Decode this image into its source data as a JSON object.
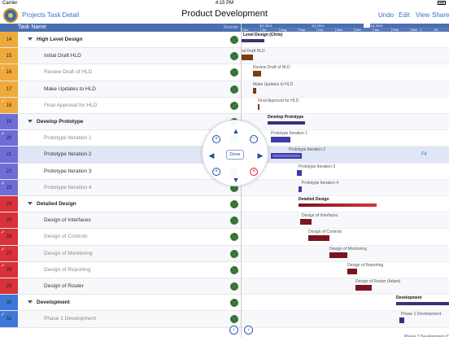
{
  "status": {
    "carrier": "Carrier",
    "time": "4:15 PM"
  },
  "nav": {
    "projects": "Projects",
    "task_detail": "Task Detail",
    "title": "Product Development",
    "undo": "Undo",
    "edit": "Edit",
    "view": "View",
    "share": "Share"
  },
  "table": {
    "header": "Task Name",
    "reorder": "Reorder"
  },
  "gantt": {
    "quarters": [
      "3Q 2014",
      "4Q 2014",
      "1Q 2015"
    ],
    "months": [
      "Jun",
      "Jul",
      "Aug",
      "Sep",
      "Oct",
      "Nov",
      "Dec",
      "Jan",
      "Feb",
      "Mar"
    ],
    "header_right": "Fit",
    "fit_label": "Fit"
  },
  "wheel": {
    "done": "Done"
  },
  "colors": {
    "orange": "#f0a93b",
    "purple": "#6f6ed8",
    "red": "#d9323a",
    "blue": "#3d78d8",
    "summary_dark": "#3c3078",
    "bar_brown": "#7a3e12",
    "bar_purple": "#3f3aa8",
    "bar_maroon": "#7a1422"
  },
  "tasks": [
    {
      "num": "14",
      "name": "High Level Design",
      "summary": true,
      "checked": false,
      "color": "orange",
      "level": 0
    },
    {
      "num": "15",
      "name": "Initial Draft HLD",
      "summary": false,
      "checked": false,
      "color": "orange",
      "level": 1
    },
    {
      "num": "16",
      "name": "Review Draft of HLD",
      "summary": false,
      "checked": true,
      "color": "orange",
      "level": 1
    },
    {
      "num": "17",
      "name": "Make Updates to HLD",
      "summary": false,
      "checked": false,
      "color": "orange",
      "level": 1
    },
    {
      "num": "18",
      "name": "Final Approval for HLD",
      "summary": false,
      "checked": true,
      "color": "orange",
      "level": 1
    },
    {
      "num": "19",
      "name": "Develop Prototype",
      "summary": true,
      "checked": false,
      "color": "purple",
      "level": 0
    },
    {
      "num": "20",
      "name": "Prototype Iteration 1",
      "summary": false,
      "checked": true,
      "color": "purple",
      "level": 1
    },
    {
      "num": "21",
      "name": "Prototype Iteration 2",
      "summary": false,
      "checked": false,
      "color": "purple",
      "level": 1
    },
    {
      "num": "22",
      "name": "Prototype Iteration 3",
      "summary": false,
      "checked": false,
      "color": "purple",
      "level": 1
    },
    {
      "num": "23",
      "name": "Prototype Iteration 4",
      "summary": false,
      "checked": true,
      "color": "purple",
      "level": 1
    },
    {
      "num": "24",
      "name": "Detailed Design",
      "summary": true,
      "checked": false,
      "color": "red",
      "level": 0
    },
    {
      "num": "25",
      "name": "Design of Interfaces",
      "summary": false,
      "checked": false,
      "color": "red",
      "level": 1
    },
    {
      "num": "26",
      "name": "Design of Controls",
      "summary": false,
      "checked": true,
      "color": "red",
      "level": 1
    },
    {
      "num": "27",
      "name": "Design of Monitoring",
      "summary": false,
      "checked": true,
      "color": "red",
      "level": 1
    },
    {
      "num": "28",
      "name": "Design of Reporting",
      "summary": false,
      "checked": true,
      "color": "red",
      "level": 1
    },
    {
      "num": "29",
      "name": "Design of Router",
      "summary": false,
      "checked": false,
      "color": "red",
      "level": 1
    },
    {
      "num": "30",
      "name": "Development",
      "summary": true,
      "checked": false,
      "color": "blue",
      "level": 0
    },
    {
      "num": "31",
      "name": "Phase 1 Development",
      "summary": false,
      "checked": true,
      "color": "blue",
      "level": 1
    }
  ],
  "bars": [
    {
      "label": "Level Design (Chris)",
      "bold": true
    },
    {
      "label": "ial Draft HLD",
      "bold": false
    },
    {
      "label": "Review Draft of HLD",
      "bold": false
    },
    {
      "label": "Make Updates to HLD",
      "bold": false
    },
    {
      "label": "Final Approval for HLD",
      "bold": false
    },
    {
      "label": "Develop Prototype",
      "bold": true
    },
    {
      "label": "Prototype Iteration 1",
      "bold": false
    },
    {
      "label": "Prototype Iteration 2",
      "bold": false
    },
    {
      "label": "Prototype Iteration 3",
      "bold": false
    },
    {
      "label": "Prototype Iteration 4",
      "bold": false
    },
    {
      "label": "Detailed Design",
      "bold": true
    },
    {
      "label": "Design of Interfaces",
      "bold": false
    },
    {
      "label": "Design of Controls",
      "bold": false
    },
    {
      "label": "Design of Monitoring",
      "bold": false
    },
    {
      "label": "Design of Reporting",
      "bold": false
    },
    {
      "label": "Design of Router (Adam)",
      "bold": false
    },
    {
      "label": "Development",
      "bold": true
    },
    {
      "label": "Phase 1 Development",
      "bold": false
    },
    {
      "label": "Phase 2 Development (C",
      "bold": false
    }
  ]
}
